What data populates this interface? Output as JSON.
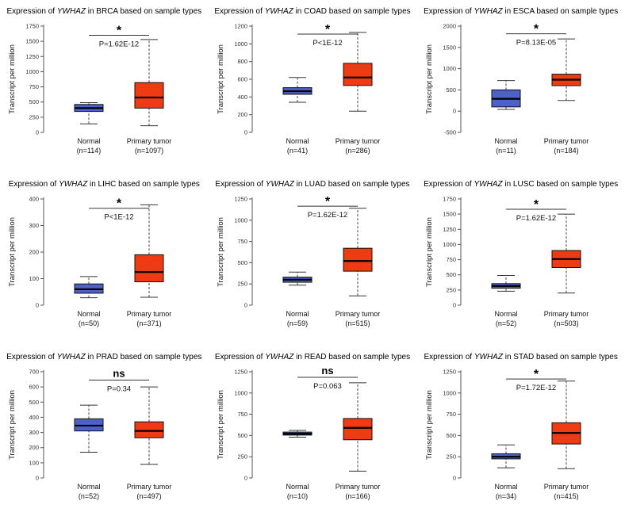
{
  "figure": {
    "gene": "YWHAZ",
    "ylabel": "Transcript per million",
    "normal_color": "#4d61c8",
    "tumor_color": "#ee3b14"
  },
  "chart_data": [
    {
      "type": "box",
      "cancer": "BRCA",
      "title_pre": "Expression of",
      "gene": "YWHAZ",
      "title_post": "in BRCA based on sample types",
      "ylabel": "Transcript per million",
      "ylim": [
        0,
        1750
      ],
      "yticks": [
        0,
        250,
        500,
        750,
        1000,
        1250,
        1500,
        1750
      ],
      "significance": "*",
      "pvalue": "P=1.62E-12",
      "sig_y": 1600,
      "groups": [
        {
          "label": "Normal",
          "n_label": "(n=114)",
          "color": "#4d61c8",
          "whisker_low": 140,
          "q1": 345,
          "median": 400,
          "q3": 460,
          "whisker_high": 490
        },
        {
          "label": "Primary tumor",
          "n_label": "(n=1097)",
          "color": "#ee3b14",
          "whisker_low": 110,
          "q1": 400,
          "median": 575,
          "q3": 820,
          "whisker_high": 1530
        }
      ]
    },
    {
      "type": "box",
      "cancer": "COAD",
      "title_pre": "Expression of",
      "gene": "YWHAZ",
      "title_post": "in COAD based on sample types",
      "ylabel": "Transcript per million",
      "ylim": [
        0,
        1200
      ],
      "yticks": [
        0,
        200,
        400,
        600,
        800,
        1000,
        1200
      ],
      "significance": "*",
      "pvalue": "P<1E-12",
      "sig_y": 1110,
      "groups": [
        {
          "label": "Normal",
          "n_label": "(n=41)",
          "color": "#4d61c8",
          "whisker_low": 340,
          "q1": 430,
          "median": 465,
          "q3": 505,
          "whisker_high": 620
        },
        {
          "label": "Primary tumor",
          "n_label": "(n=286)",
          "color": "#ee3b14",
          "whisker_low": 240,
          "q1": 530,
          "median": 620,
          "q3": 780,
          "whisker_high": 1130
        }
      ]
    },
    {
      "type": "box",
      "cancer": "ESCA",
      "title_pre": "Expression of",
      "gene": "YWHAZ",
      "title_post": "in ESCA based on sample types",
      "ylabel": "Transcript per million",
      "ylim": [
        -500,
        2000
      ],
      "yticks": [
        -500,
        0,
        500,
        1000,
        1500,
        2000
      ],
      "significance": "*",
      "pvalue": "P=8.13E-05",
      "sig_y": 1820,
      "groups": [
        {
          "label": "Normal",
          "n_label": "(n=11)",
          "color": "#4d61c8",
          "whisker_low": 40,
          "q1": 100,
          "median": 290,
          "q3": 500,
          "whisker_high": 720
        },
        {
          "label": "Primary tumor",
          "n_label": "(n=184)",
          "color": "#ee3b14",
          "whisker_low": 250,
          "q1": 600,
          "median": 740,
          "q3": 870,
          "whisker_high": 1700
        }
      ]
    },
    {
      "type": "box",
      "cancer": "LIHC",
      "title_pre": "Expression of",
      "gene": "YWHAZ",
      "title_post": "in LIHC based on sample types",
      "ylabel": "Transcript per million",
      "ylim": [
        0,
        400
      ],
      "yticks": [
        0,
        100,
        200,
        300,
        400
      ],
      "significance": "*",
      "pvalue": "P<1E-12",
      "sig_y": 365,
      "groups": [
        {
          "label": "Normal",
          "n_label": "(n=50)",
          "color": "#4d61c8",
          "whisker_low": 28,
          "q1": 45,
          "median": 60,
          "q3": 80,
          "whisker_high": 108
        },
        {
          "label": "Primary tumor",
          "n_label": "(n=371)",
          "color": "#ee3b14",
          "whisker_low": 30,
          "q1": 88,
          "median": 125,
          "q3": 190,
          "whisker_high": 378
        }
      ]
    },
    {
      "type": "box",
      "cancer": "LUAD",
      "title_pre": "Expression of",
      "gene": "YWHAZ",
      "title_post": "in LUAD based on sample types",
      "ylabel": "Transcript per million",
      "ylim": [
        0,
        1250
      ],
      "yticks": [
        0,
        250,
        500,
        750,
        1000,
        1250
      ],
      "significance": "*",
      "pvalue": "P=1.62E-12",
      "sig_y": 1165,
      "groups": [
        {
          "label": "Normal",
          "n_label": "(n=59)",
          "color": "#4d61c8",
          "whisker_low": 235,
          "q1": 270,
          "median": 300,
          "q3": 330,
          "whisker_high": 390
        },
        {
          "label": "Primary tumor",
          "n_label": "(n=515)",
          "color": "#ee3b14",
          "whisker_low": 110,
          "q1": 400,
          "median": 520,
          "q3": 670,
          "whisker_high": 1140
        }
      ]
    },
    {
      "type": "box",
      "cancer": "LUSC",
      "title_pre": "Expression of",
      "gene": "YWHAZ",
      "title_post": "in LUSC based on sample types",
      "ylabel": "Transcript per million",
      "ylim": [
        0,
        1750
      ],
      "yticks": [
        0,
        250,
        500,
        750,
        1000,
        1250,
        1500,
        1750
      ],
      "significance": "*",
      "pvalue": "P=1.62E-12",
      "sig_y": 1580,
      "groups": [
        {
          "label": "Normal",
          "n_label": "(n=52)",
          "color": "#4d61c8",
          "whisker_low": 230,
          "q1": 280,
          "median": 315,
          "q3": 355,
          "whisker_high": 490
        },
        {
          "label": "Primary tumor",
          "n_label": "(n=503)",
          "color": "#ee3b14",
          "whisker_low": 200,
          "q1": 620,
          "median": 760,
          "q3": 900,
          "whisker_high": 1500
        }
      ]
    },
    {
      "type": "box",
      "cancer": "PRAD",
      "title_pre": "Expression of",
      "gene": "YWHAZ",
      "title_post": "in PRAD based on sample types",
      "ylabel": "Transcript per million",
      "ylim": [
        0,
        700
      ],
      "yticks": [
        0,
        100,
        200,
        300,
        400,
        500,
        600,
        700
      ],
      "significance": "ns",
      "pvalue": "P=0.34",
      "sig_y": 645,
      "groups": [
        {
          "label": "Normal",
          "n_label": "(n=52)",
          "color": "#4d61c8",
          "whisker_low": 170,
          "q1": 310,
          "median": 345,
          "q3": 390,
          "whisker_high": 480
        },
        {
          "label": "Primary tumor",
          "n_label": "(n=497)",
          "color": "#ee3b14",
          "whisker_low": 90,
          "q1": 265,
          "median": 310,
          "q3": 370,
          "whisker_high": 600
        }
      ]
    },
    {
      "type": "box",
      "cancer": "READ",
      "title_pre": "Expression of",
      "gene": "YWHAZ",
      "title_post": "in READ based on sample types",
      "ylabel": "Transcript per million",
      "ylim": [
        0,
        1250
      ],
      "yticks": [
        0,
        250,
        500,
        750,
        1000,
        1250
      ],
      "significance": "ns",
      "pvalue": "P=0.063",
      "sig_y": 1185,
      "groups": [
        {
          "label": "Normal",
          "n_label": "(n=10)",
          "color": "#4d61c8",
          "whisker_low": 480,
          "q1": 505,
          "median": 520,
          "q3": 540,
          "whisker_high": 560
        },
        {
          "label": "Primary tumor",
          "n_label": "(n=166)",
          "color": "#ee3b14",
          "whisker_low": 80,
          "q1": 450,
          "median": 590,
          "q3": 700,
          "whisker_high": 1120
        }
      ]
    },
    {
      "type": "box",
      "cancer": "STAD",
      "title_pre": "Expression of",
      "gene": "YWHAZ",
      "title_post": "in STAD based on sample types",
      "ylabel": "Transcript per million",
      "ylim": [
        0,
        1250
      ],
      "yticks": [
        0,
        250,
        500,
        750,
        1000,
        1250
      ],
      "significance": "*",
      "pvalue": "P=1.72E-12",
      "sig_y": 1165,
      "groups": [
        {
          "label": "Normal",
          "n_label": "(n=34)",
          "color": "#4d61c8",
          "whisker_low": 120,
          "q1": 225,
          "median": 250,
          "q3": 285,
          "whisker_high": 390
        },
        {
          "label": "Primary tumor",
          "n_label": "(n=415)",
          "color": "#ee3b14",
          "whisker_low": 110,
          "q1": 400,
          "median": 530,
          "q3": 650,
          "whisker_high": 1140
        }
      ]
    }
  ]
}
